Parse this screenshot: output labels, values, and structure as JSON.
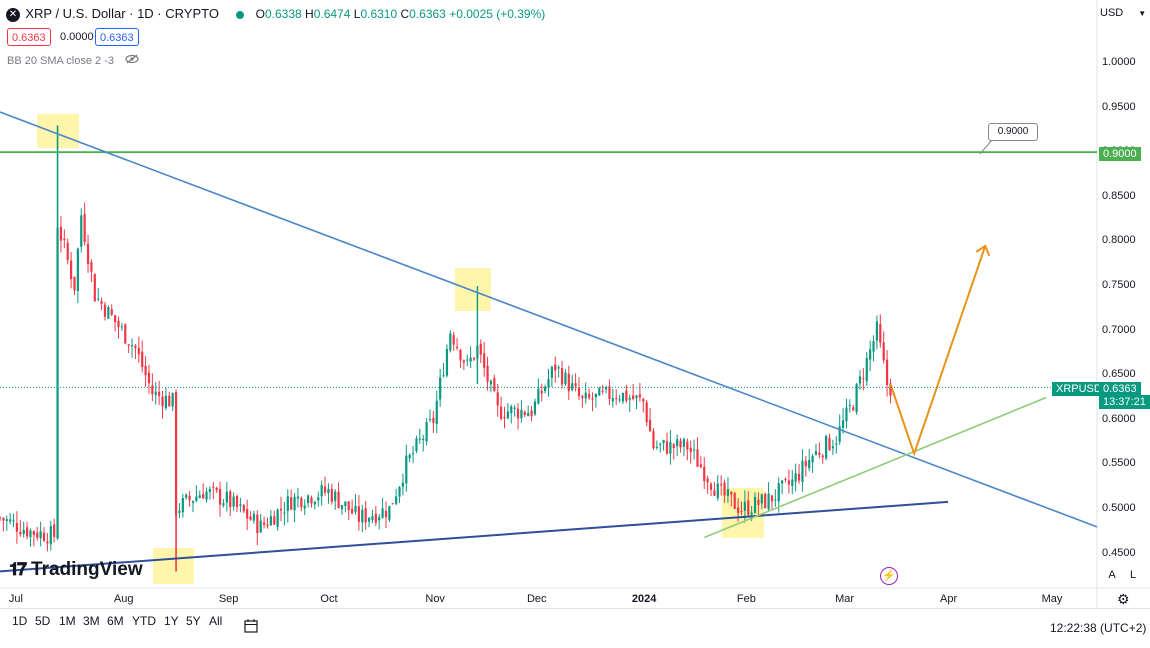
{
  "header": {
    "symbol_title": "XRP / U.S. Dollar · 1D · CRYPTO",
    "ohlc": {
      "o_label": "O",
      "o": "0.6338",
      "h_label": "H",
      "h": "0.6474",
      "l_label": "L",
      "l": "0.6310",
      "c_label": "C",
      "c": "0.6363",
      "change": "+0.0025 (+0.39%)"
    },
    "sell_price": "0.6363",
    "spread": "0.0000",
    "buy_price": "0.6363",
    "indicator_label": "BB 20 SMA close 2 -3"
  },
  "currency": "USD",
  "watermark": "TradingView",
  "price_axis_labels": [
    "1.0000",
    "0.9500",
    "0.9000",
    "0.8500",
    "0.8000",
    "0.7500",
    "0.7000",
    "0.6500",
    "0.6000",
    "0.5500",
    "0.5000",
    "0.4500"
  ],
  "time_axis_labels": [
    "Jul",
    "Aug",
    "Sep",
    "Oct",
    "Nov",
    "Dec",
    "2024",
    "Feb",
    "Mar",
    "Apr",
    "May"
  ],
  "annotations": {
    "target_callout": "0.9000",
    "target_axis_tag": "0.9000",
    "symbol_tag": "XRPUSD",
    "current_price_tag": "0.6363",
    "countdown": "13:37:21"
  },
  "timeframes": [
    "1D",
    "5D",
    "1M",
    "3M",
    "6M",
    "YTD",
    "1Y",
    "5Y",
    "All"
  ],
  "axis_buttons": {
    "auto": "A",
    "log": "L"
  },
  "clock": "12:22:38 (UTC+2)",
  "colors": {
    "up": "#089981",
    "down": "#f23645",
    "trend_blue": "#4a86c8",
    "support_navy": "#2f4f9a",
    "rising_green": "#8fcc7a",
    "resistance_green": "#4caf50",
    "forecast_orange": "#e8921a",
    "highlight_yellow": "#fff59d"
  },
  "chart_data": {
    "type": "candlestick",
    "title": "XRP / U.S. Dollar · 1D · CRYPTO",
    "ylim": [
      0.43,
      1.05
    ],
    "xrange": [
      "2023-06-26",
      "2024-05-15"
    ],
    "y_ticks": [
      1.0,
      0.95,
      0.9,
      0.85,
      0.8,
      0.75,
      0.7,
      0.65,
      0.6,
      0.55,
      0.5,
      0.45
    ],
    "x_ticks": [
      "Jul",
      "Aug",
      "Sep",
      "Oct",
      "Nov",
      "Dec",
      "2024",
      "Feb",
      "Mar",
      "Apr",
      "May"
    ],
    "last_price": 0.6363,
    "daily_close_path": [
      [
        "2023-06-26",
        0.49
      ],
      [
        "2023-07-05",
        0.475
      ],
      [
        "2023-07-12",
        0.47
      ],
      [
        "2023-07-13",
        0.82
      ],
      [
        "2023-07-18",
        0.75
      ],
      [
        "2023-07-20",
        0.83
      ],
      [
        "2023-07-24",
        0.74
      ],
      [
        "2023-07-30",
        0.71
      ],
      [
        "2023-08-05",
        0.68
      ],
      [
        "2023-08-10",
        0.63
      ],
      [
        "2023-08-16",
        0.62
      ],
      [
        "2023-08-17",
        0.5
      ],
      [
        "2023-08-25",
        0.52
      ],
      [
        "2023-09-01",
        0.51
      ],
      [
        "2023-09-11",
        0.48
      ],
      [
        "2023-09-20",
        0.51
      ],
      [
        "2023-10-01",
        0.52
      ],
      [
        "2023-10-10",
        0.49
      ],
      [
        "2023-10-19",
        0.5
      ],
      [
        "2023-10-24",
        0.55
      ],
      [
        "2023-11-01",
        0.6
      ],
      [
        "2023-11-06",
        0.7
      ],
      [
        "2023-11-11",
        0.66
      ],
      [
        "2023-11-14",
        0.68
      ],
      [
        "2023-11-20",
        0.61
      ],
      [
        "2023-11-30",
        0.61
      ],
      [
        "2023-12-07",
        0.66
      ],
      [
        "2023-12-15",
        0.62
      ],
      [
        "2023-12-25",
        0.63
      ],
      [
        "2024-01-02",
        0.62
      ],
      [
        "2024-01-05",
        0.57
      ],
      [
        "2024-01-15",
        0.57
      ],
      [
        "2024-01-24",
        0.52
      ],
      [
        "2024-01-31",
        0.5
      ],
      [
        "2024-02-08",
        0.51
      ],
      [
        "2024-02-15",
        0.53
      ],
      [
        "2024-02-21",
        0.56
      ],
      [
        "2024-02-28",
        0.58
      ],
      [
        "2024-03-04",
        0.62
      ],
      [
        "2024-03-11",
        0.7
      ],
      [
        "2024-03-14",
        0.64
      ],
      [
        "2024-03-15",
        0.6363
      ]
    ],
    "drawings": [
      {
        "type": "resistance_line",
        "y": 0.9
      },
      {
        "type": "descending_trendline",
        "from": [
          "2023-06-26",
          0.945
        ],
        "to": [
          "2024-05-15",
          0.48
        ]
      },
      {
        "type": "ascending_support",
        "from": [
          "2023-06-26",
          0.43
        ],
        "to": [
          "2024-04-01",
          0.508
        ]
      },
      {
        "type": "rising_trendline",
        "from": [
          "2024-01-20",
          0.468
        ],
        "to": [
          "2024-04-30",
          0.625
        ]
      },
      {
        "type": "forecast_path",
        "points": [
          [
            "2024-03-15",
            0.64
          ],
          [
            "2024-03-22",
            0.562
          ],
          [
            "2024-04-12",
            0.795
          ]
        ]
      },
      {
        "type": "highlight_boxes",
        "at": [
          "2023-07-13",
          "2023-08-17",
          "2023-11-14",
          "2024-02-02"
        ]
      }
    ]
  }
}
